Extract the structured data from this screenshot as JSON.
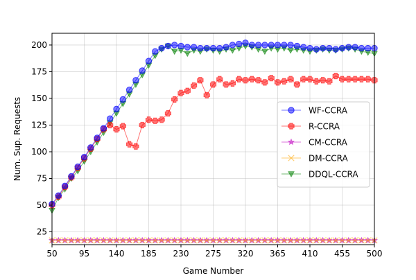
{
  "chart_data": {
    "type": "line",
    "title": "",
    "xlabel": "Game Number",
    "ylabel": "Num. Sup. Requests",
    "xlim": [
      50,
      500
    ],
    "ylim": [
      13,
      211
    ],
    "xticks": [
      50,
      95,
      140,
      185,
      230,
      275,
      320,
      365,
      410,
      455,
      500
    ],
    "yticks": [
      25,
      50,
      75,
      100,
      125,
      150,
      175,
      200
    ],
    "grid": true,
    "legend_placement": "center-right",
    "x": [
      50,
      59,
      68,
      77,
      86,
      95,
      104,
      113,
      122,
      131,
      140,
      149,
      158,
      167,
      176,
      185,
      194,
      203,
      212,
      221,
      230,
      239,
      248,
      257,
      266,
      275,
      284,
      293,
      302,
      311,
      320,
      329,
      338,
      347,
      356,
      365,
      374,
      383,
      392,
      401,
      410,
      419,
      428,
      437,
      446,
      455,
      464,
      473,
      482,
      491,
      500
    ],
    "series": [
      {
        "name": "WF-CCRA",
        "color": "#0000ff",
        "marker": "circle",
        "values": [
          51,
          59,
          68,
          77,
          86,
          95,
          104,
          113,
          122,
          131,
          140,
          149,
          158,
          167,
          176,
          185,
          194,
          197,
          199,
          200,
          199,
          198,
          198,
          197,
          197,
          197,
          197,
          198,
          200,
          201,
          202,
          200,
          200,
          200,
          200,
          200,
          200,
          200,
          199,
          198,
          197,
          196,
          197,
          197,
          196,
          197,
          198,
          198,
          197,
          197,
          197
        ]
      },
      {
        "name": "R-CCRA",
        "color": "#ff0000",
        "marker": "plus",
        "values": [
          50,
          58,
          67,
          76,
          85,
          94,
          103,
          112,
          121,
          125,
          121,
          124,
          107,
          105,
          125,
          130,
          129,
          130,
          136,
          149,
          155,
          157,
          162,
          167,
          153,
          163,
          168,
          163,
          164,
          168,
          167,
          168,
          167,
          165,
          169,
          165,
          166,
          168,
          163,
          168,
          168,
          166,
          167,
          166,
          171,
          168,
          168,
          168,
          168,
          168,
          167
        ]
      },
      {
        "name": "CM-CCRA",
        "color": "#bf00bf",
        "marker": "star",
        "values": [
          17,
          17,
          17,
          17,
          17,
          17,
          17,
          17,
          17,
          17,
          17,
          17,
          17,
          17,
          17,
          17,
          17,
          17,
          17,
          17,
          17,
          17,
          17,
          17,
          17,
          17,
          17,
          17,
          17,
          17,
          17,
          17,
          17,
          17,
          17,
          17,
          17,
          17,
          17,
          17,
          17,
          17,
          17,
          17,
          17,
          17,
          17,
          17,
          17,
          17,
          17
        ]
      },
      {
        "name": "DM-CCRA",
        "color": "#ffa500",
        "marker": "x",
        "values": [
          17,
          17,
          17,
          17,
          17,
          17,
          17,
          17,
          17,
          17,
          17,
          17,
          17,
          17,
          17,
          17,
          17,
          17,
          17,
          17,
          17,
          17,
          17,
          17,
          17,
          17,
          17,
          17,
          17,
          17,
          17,
          17,
          17,
          17,
          17,
          17,
          17,
          17,
          17,
          17,
          17,
          17,
          17,
          17,
          17,
          17,
          17,
          17,
          17,
          17,
          17
        ]
      },
      {
        "name": "DDQL-CCRA",
        "color": "#008000",
        "marker": "triangle-down",
        "values": [
          45,
          57,
          65,
          75,
          82,
          91,
          100,
          109,
          118,
          127,
          136,
          145,
          154,
          163,
          172,
          181,
          190,
          196,
          199,
          194,
          195,
          192,
          195,
          194,
          196,
          195,
          194,
          196,
          195,
          197,
          199,
          198,
          196,
          194,
          197,
          196,
          197,
          195,
          196,
          195,
          194,
          195,
          196,
          195,
          195,
          196,
          197,
          196,
          194,
          193,
          192
        ]
      }
    ]
  }
}
